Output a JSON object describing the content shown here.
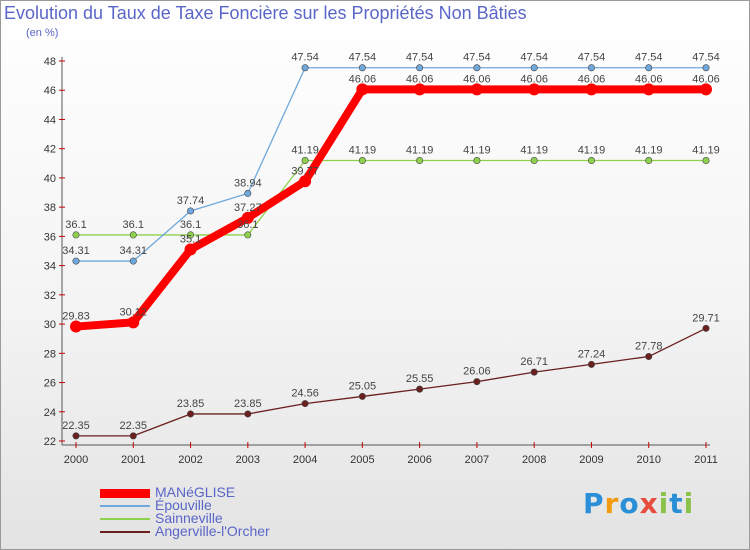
{
  "chart_data": {
    "type": "line",
    "title": "Evolution du Taux de Taxe Foncière sur les Propriétés Non Bâties",
    "ylabel": "(en %)",
    "xlabel": "",
    "categories": [
      "2000",
      "2001",
      "2002",
      "2003",
      "2004",
      "2005",
      "2006",
      "2007",
      "2008",
      "2009",
      "2010",
      "2011"
    ],
    "ylim": [
      22,
      48
    ],
    "yticks": [
      22,
      24,
      26,
      28,
      30,
      32,
      34,
      36,
      38,
      40,
      42,
      44,
      46,
      48
    ],
    "grid": false,
    "legend_position": "bottom-left",
    "series": [
      {
        "name": "MANéGLISE",
        "color": "#ff0000",
        "values": [
          29.83,
          30.12,
          35.1,
          37.27,
          39.77,
          46.06,
          46.06,
          46.06,
          46.06,
          46.06,
          46.06,
          46.06
        ],
        "labels": [
          "29.83",
          "30.12",
          "35.1",
          "37.27",
          "39.77",
          "46.06",
          "46.06",
          "46.06",
          "46.06",
          "46.06",
          "46.06",
          "46.06"
        ]
      },
      {
        "name": "Épouville",
        "color": "#6fa8dc",
        "values": [
          34.31,
          34.31,
          37.74,
          38.94,
          47.54,
          47.54,
          47.54,
          47.54,
          47.54,
          47.54,
          47.54,
          47.54
        ],
        "labels": [
          "34.31",
          "34.31",
          "37.74",
          "38.94",
          "47.54",
          "47.54",
          "47.54",
          "47.54",
          "47.54",
          "47.54",
          "47.54",
          "47.54"
        ]
      },
      {
        "name": "Sainneville",
        "color": "#8fd14f",
        "values": [
          36.1,
          36.1,
          36.1,
          36.1,
          41.19,
          41.19,
          41.19,
          41.19,
          41.19,
          41.19,
          41.19,
          41.19
        ],
        "labels": [
          "36.1",
          "36.1",
          "36.1",
          "36.1",
          "41.19",
          "41.19",
          "41.19",
          "41.19",
          "41.19",
          "41.19",
          "41.19",
          "41.19"
        ]
      },
      {
        "name": "Angerville-l'Orcher",
        "color": "#6b1f1f",
        "values": [
          22.35,
          22.35,
          23.85,
          23.85,
          24.56,
          25.05,
          25.55,
          26.06,
          26.71,
          27.24,
          27.78,
          29.71
        ],
        "labels": [
          "22.35",
          "22.35",
          "23.85",
          "23.85",
          "24.56",
          "25.05",
          "25.55",
          "26.06",
          "26.71",
          "27.24",
          "27.78",
          "29.71"
        ]
      }
    ]
  },
  "logo": {
    "letters": [
      "P",
      "r",
      "o",
      "x",
      "i",
      "t",
      "i"
    ],
    "colors": [
      "#2a8fd6",
      "#f39c12",
      "#2a8fd6",
      "#e74c3c",
      "#8bc34a",
      "#2a8fd6",
      "#8bc34a"
    ]
  }
}
